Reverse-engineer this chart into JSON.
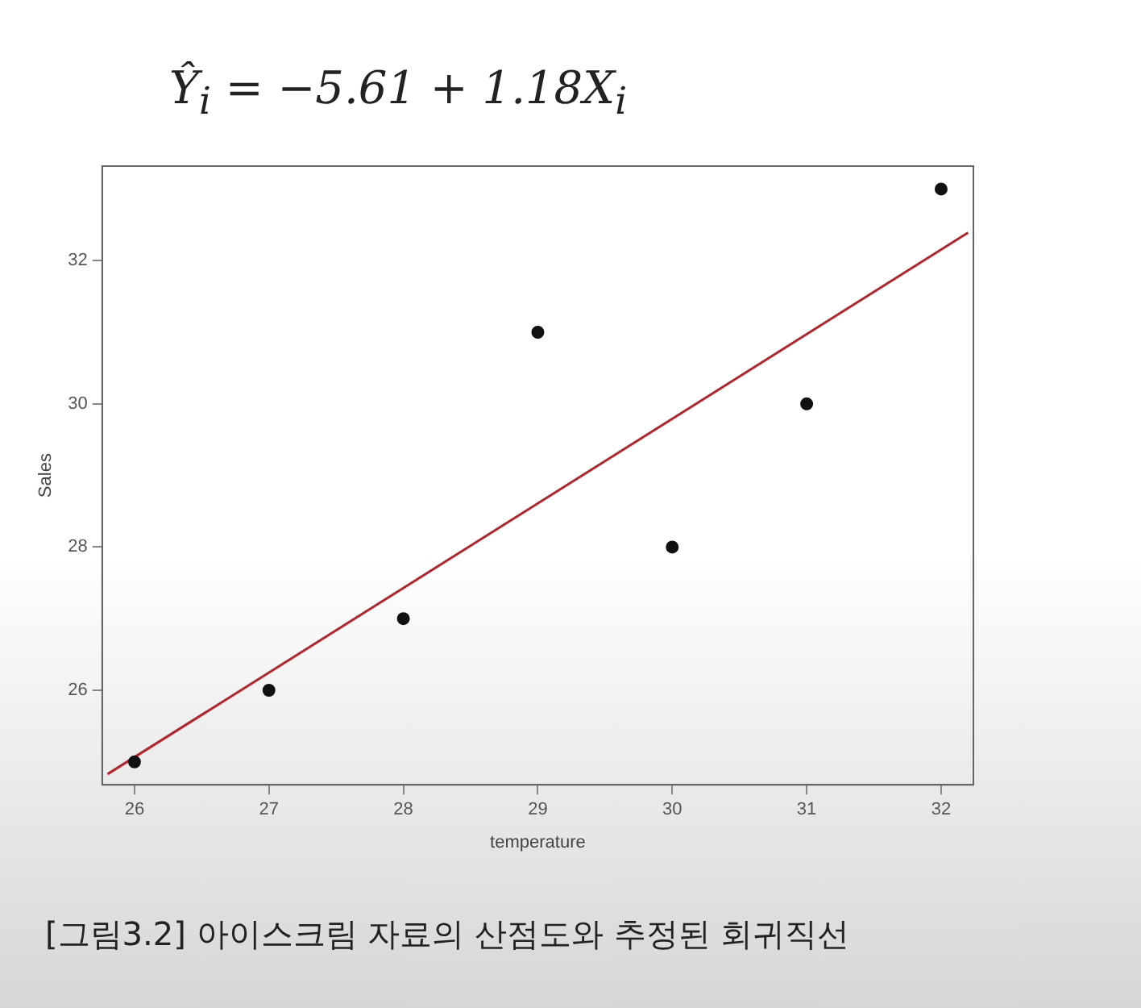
{
  "chart_data": {
    "type": "scatter",
    "xlabel": "temperature",
    "ylabel": "Sales",
    "xlim": [
      25.76,
      32.24
    ],
    "ylim": [
      24.68,
      33.32
    ],
    "xticks": [
      26,
      27,
      28,
      29,
      30,
      31,
      32
    ],
    "yticks": [
      26,
      28,
      30,
      32
    ],
    "grid": false,
    "legend": false,
    "marker": "circle",
    "series": [
      {
        "color": "#111111",
        "x": [
          26,
          27,
          28,
          29,
          30,
          31,
          32
        ],
        "values": [
          25,
          26,
          27,
          31,
          28,
          30,
          33
        ]
      },
      {
        "type": "line",
        "color": "#b5232b",
        "x": [
          25.8,
          32.2
        ],
        "values": [
          24.83,
          32.39
        ],
        "marker": "none",
        "line_style": "solid"
      }
    ],
    "annotations": [
      "Ŷ$_{i}$ = −5.61 + 1.18X$_{i}$",
      "[그림3.2] 아이스크림 자료의 산점도와 추정된 회귀직선"
    ]
  }
}
